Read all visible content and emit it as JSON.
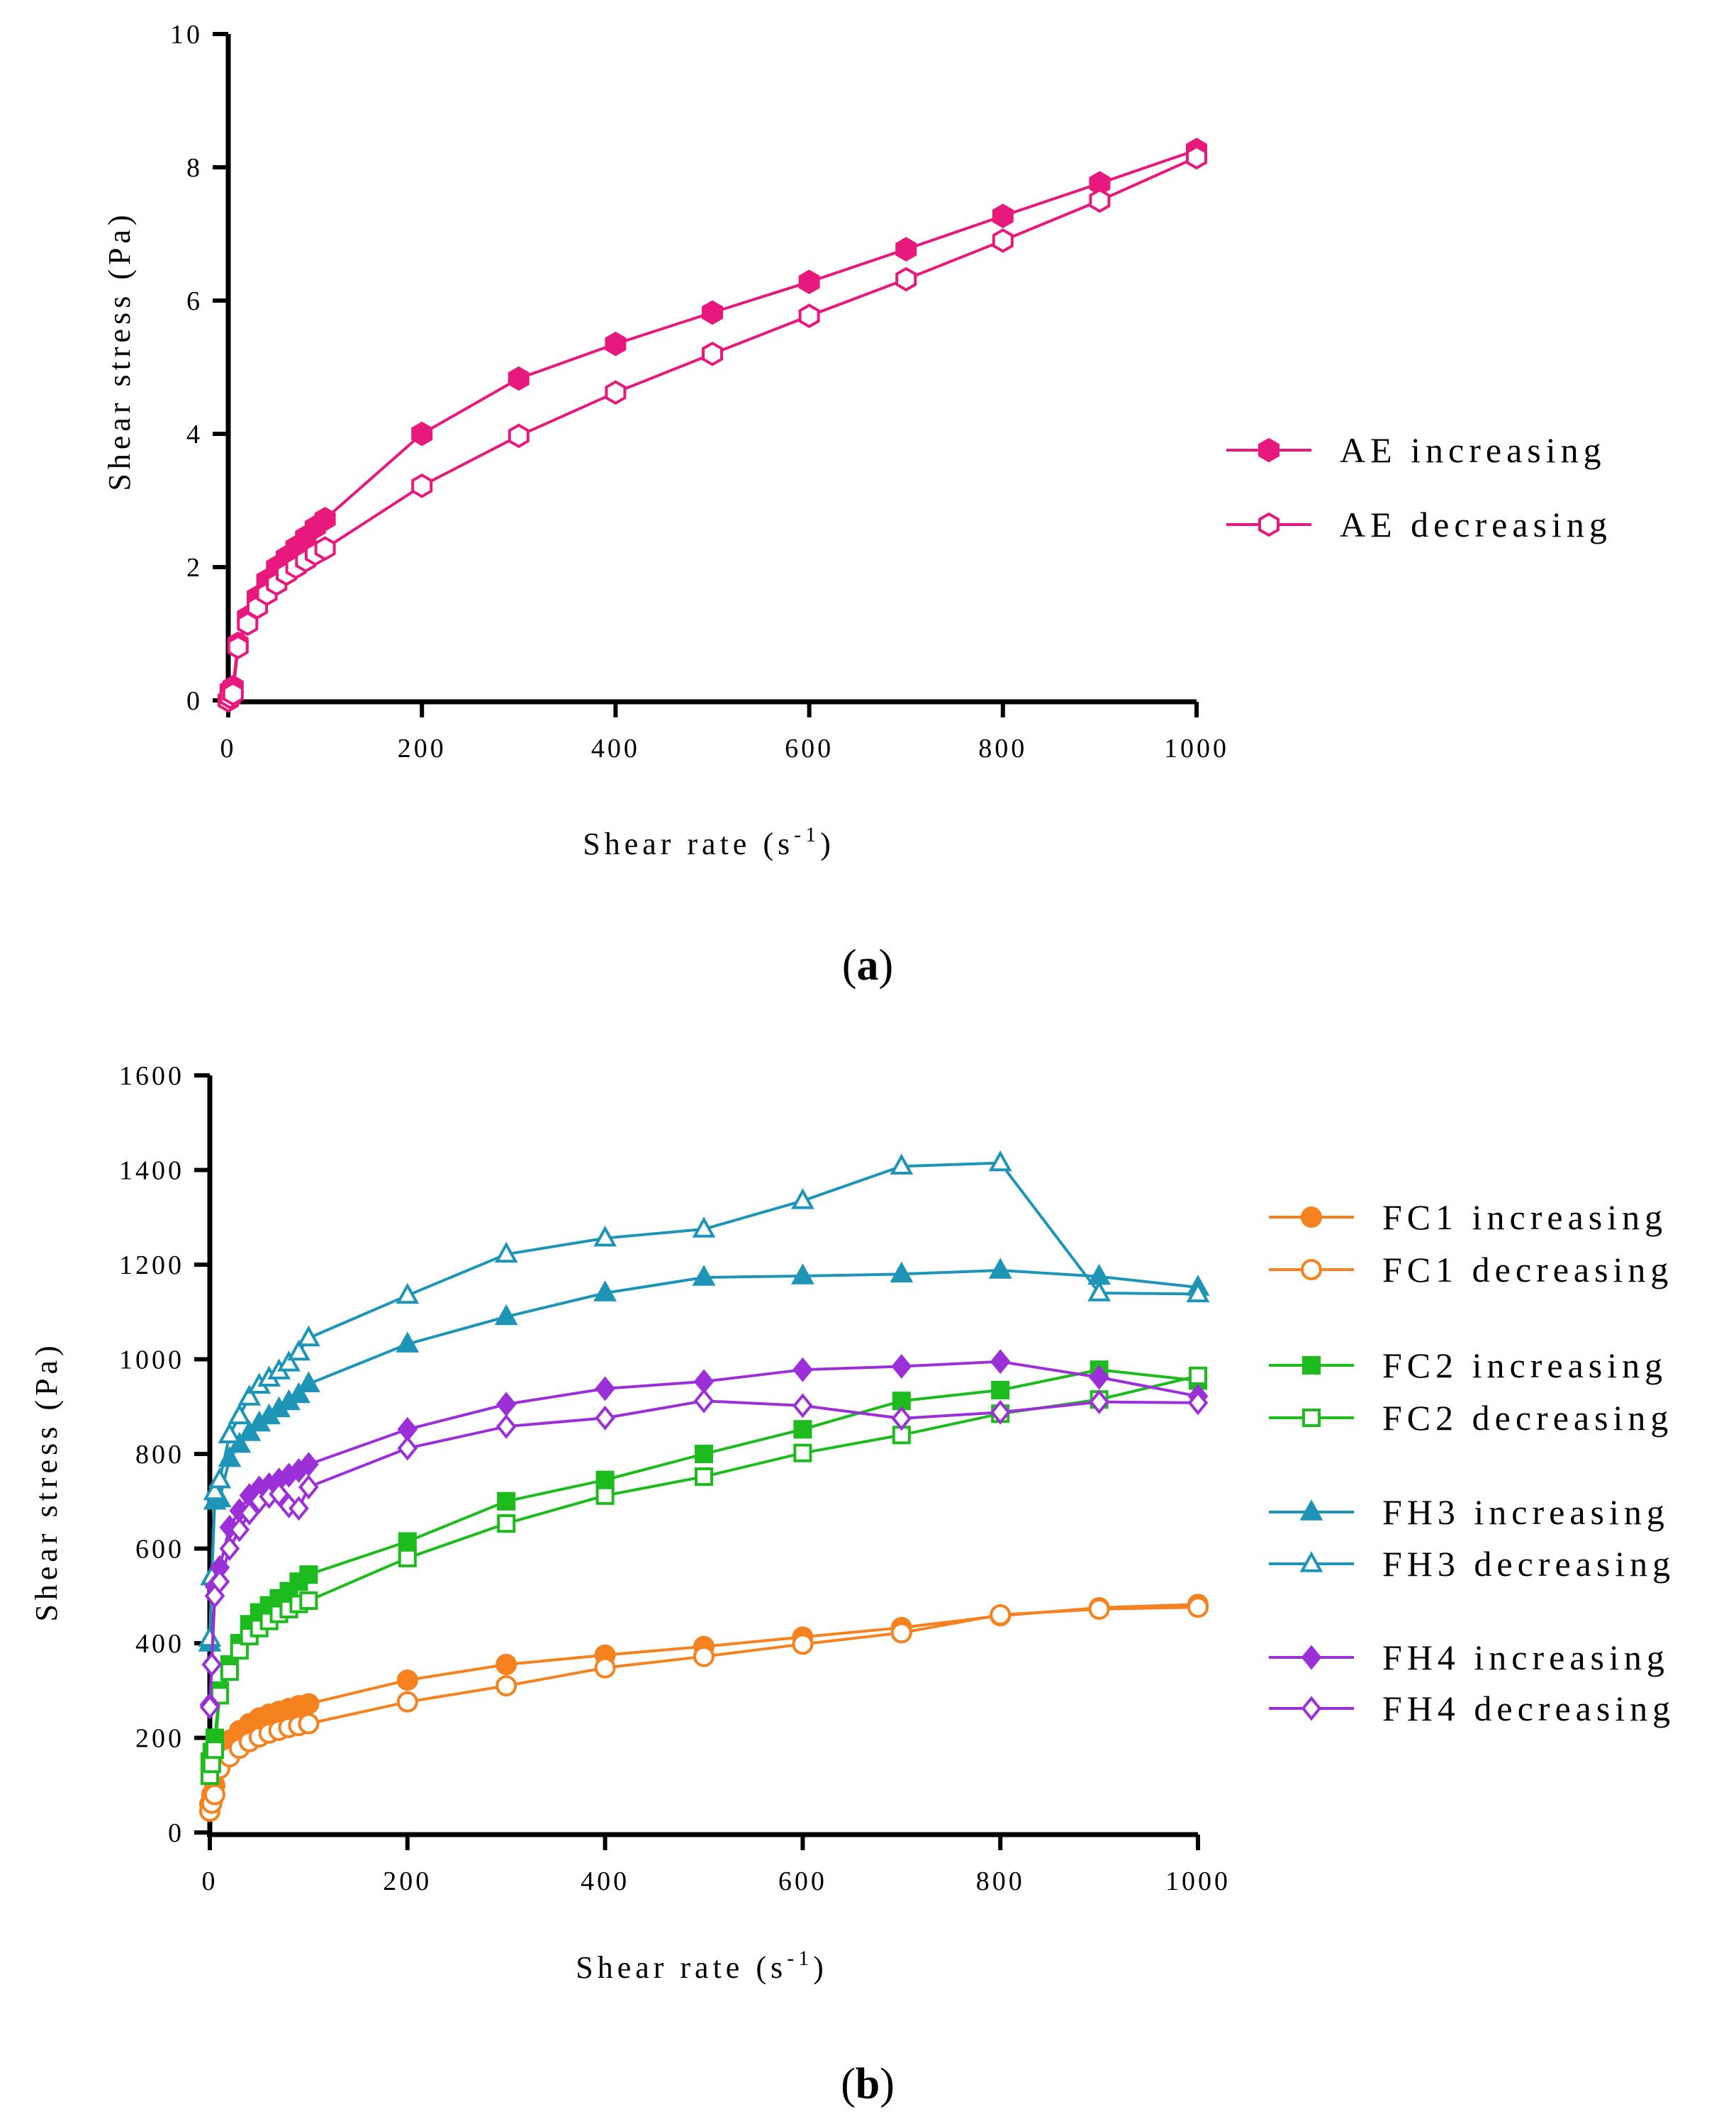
{
  "panels": [
    {
      "label_letter": "a",
      "open_paren": "(",
      "close_paren": ")"
    },
    {
      "label_letter": "b",
      "open_paren": "(",
      "close_paren": ")"
    }
  ],
  "chart_data": [
    {
      "type": "line",
      "xlabel": "Shear rate (s",
      "xlabel_sup": "-1",
      "xlabel_end": ")",
      "ylabel": "Shear stress (Pa)",
      "xlim": [
        0,
        1000
      ],
      "ylim": [
        0,
        10
      ],
      "xticks": [
        0,
        200,
        400,
        600,
        800,
        1000
      ],
      "yticks": [
        0,
        2,
        4,
        6,
        8,
        10
      ],
      "grid": false,
      "legend_position": "right",
      "series": [
        {
          "name": "AE increasing",
          "color": "#e8197d",
          "marker": "hexagon",
          "filled": true,
          "x": [
            0,
            2,
            5,
            10,
            20,
            30,
            40,
            50,
            60,
            70,
            80,
            90,
            100,
            200,
            300,
            400,
            500,
            600,
            700,
            800,
            900,
            1000
          ],
          "y": [
            0.0,
            0.15,
            0.2,
            0.85,
            1.25,
            1.55,
            1.8,
            2.0,
            2.15,
            2.3,
            2.45,
            2.6,
            2.72,
            4.0,
            4.83,
            5.35,
            5.82,
            6.28,
            6.77,
            7.27,
            7.76,
            8.26
          ]
        },
        {
          "name": "AE decreasing",
          "color": "#e8197d",
          "marker": "hexagon",
          "filled": false,
          "x": [
            0,
            2,
            5,
            10,
            20,
            30,
            40,
            50,
            60,
            70,
            80,
            90,
            100,
            200,
            300,
            400,
            500,
            600,
            700,
            800,
            900,
            1000
          ],
          "y": [
            0.0,
            0.05,
            0.1,
            0.8,
            1.15,
            1.4,
            1.6,
            1.75,
            1.9,
            2.0,
            2.1,
            2.2,
            2.28,
            3.22,
            3.97,
            4.62,
            5.2,
            5.77,
            6.32,
            6.9,
            7.5,
            8.15
          ]
        }
      ]
    },
    {
      "type": "line",
      "xlabel": "Shear rate (s",
      "xlabel_sup": "-1",
      "xlabel_end": ")",
      "ylabel": "Shear stress (Pa)",
      "xlim": [
        0,
        1000
      ],
      "ylim": [
        0,
        1600
      ],
      "xticks": [
        0,
        200,
        400,
        600,
        800,
        1000
      ],
      "yticks": [
        0,
        200,
        400,
        600,
        800,
        1000,
        1200,
        1400,
        1600
      ],
      "grid": false,
      "legend_position": "right",
      "series": [
        {
          "name": "FC1 increasing",
          "color": "#f5821f",
          "marker": "circle",
          "filled": true,
          "x": [
            0,
            2,
            5,
            10,
            20,
            30,
            40,
            50,
            60,
            70,
            80,
            90,
            100,
            200,
            300,
            400,
            500,
            600,
            700,
            800,
            900,
            1000
          ],
          "y": [
            60,
            80,
            100,
            165,
            195,
            215,
            230,
            242,
            250,
            256,
            262,
            268,
            272,
            322,
            355,
            375,
            393,
            413,
            433,
            458,
            475,
            482
          ]
        },
        {
          "name": "FC1 decreasing",
          "color": "#f5821f",
          "marker": "circle",
          "filled": false,
          "x": [
            0,
            2,
            5,
            10,
            20,
            30,
            40,
            50,
            60,
            70,
            80,
            90,
            100,
            200,
            300,
            400,
            500,
            600,
            700,
            800,
            900,
            1000
          ],
          "y": [
            45,
            62,
            80,
            135,
            160,
            178,
            192,
            202,
            210,
            216,
            222,
            226,
            230,
            276,
            310,
            348,
            372,
            398,
            422,
            460,
            472,
            476
          ]
        },
        {
          "name": "FC2 increasing",
          "color": "#1dbb1d",
          "marker": "square",
          "filled": true,
          "x": [
            0,
            2,
            5,
            10,
            20,
            30,
            40,
            50,
            60,
            70,
            80,
            90,
            100,
            200,
            300,
            400,
            500,
            600,
            700,
            800,
            900,
            1000
          ],
          "y": [
            150,
            170,
            200,
            300,
            355,
            400,
            440,
            465,
            480,
            495,
            510,
            530,
            545,
            615,
            700,
            745,
            800,
            852,
            912,
            935,
            978,
            955
          ]
        },
        {
          "name": "FC2 decreasing",
          "color": "#1dbb1d",
          "marker": "square",
          "filled": false,
          "x": [
            0,
            2,
            5,
            10,
            20,
            30,
            40,
            50,
            60,
            70,
            80,
            90,
            100,
            200,
            300,
            400,
            500,
            600,
            700,
            800,
            900,
            1000
          ],
          "y": [
            120,
            145,
            175,
            290,
            340,
            385,
            415,
            432,
            447,
            462,
            472,
            483,
            490,
            580,
            653,
            712,
            752,
            802,
            840,
            885,
            915,
            965
          ]
        },
        {
          "name": "FH3 increasing",
          "color": "#1e95b6",
          "marker": "triangle",
          "filled": true,
          "x": [
            0,
            2,
            5,
            10,
            20,
            30,
            40,
            50,
            60,
            70,
            80,
            90,
            100,
            200,
            300,
            400,
            500,
            600,
            700,
            800,
            900,
            1000
          ],
          "y": [
            400,
            540,
            700,
            705,
            790,
            820,
            845,
            865,
            880,
            895,
            910,
            925,
            948,
            1032,
            1090,
            1140,
            1173,
            1176,
            1180,
            1188,
            1175,
            1152
          ]
        },
        {
          "name": "FH3 decreasing",
          "color": "#1e95b6",
          "marker": "triangle",
          "filled": false,
          "x": [
            0,
            2,
            5,
            10,
            20,
            30,
            40,
            50,
            60,
            70,
            80,
            90,
            100,
            200,
            300,
            400,
            500,
            600,
            700,
            800,
            900,
            1000
          ],
          "y": [
            410,
            540,
            720,
            745,
            840,
            880,
            920,
            945,
            960,
            975,
            992,
            1015,
            1045,
            1135,
            1222,
            1256,
            1275,
            1335,
            1408,
            1415,
            1140,
            1138
          ]
        },
        {
          "name": "FH4 increasing",
          "color": "#9b30d9",
          "marker": "diamond",
          "filled": true,
          "x": [
            0,
            2,
            5,
            10,
            20,
            30,
            40,
            50,
            60,
            70,
            80,
            90,
            100,
            200,
            300,
            400,
            500,
            600,
            700,
            800,
            900,
            1000
          ],
          "y": [
            270,
            355,
            520,
            560,
            645,
            680,
            712,
            728,
            735,
            745,
            755,
            765,
            778,
            852,
            905,
            938,
            953,
            978,
            985,
            995,
            962,
            922
          ]
        },
        {
          "name": "FH4 decreasing",
          "color": "#9b30d9",
          "marker": "diamond",
          "filled": false,
          "x": [
            0,
            2,
            5,
            10,
            20,
            30,
            40,
            50,
            60,
            70,
            80,
            90,
            100,
            200,
            300,
            400,
            500,
            600,
            700,
            800,
            900,
            1000
          ],
          "y": [
            265,
            355,
            500,
            530,
            600,
            640,
            675,
            700,
            710,
            715,
            690,
            685,
            730,
            812,
            858,
            876,
            912,
            902,
            875,
            888,
            910,
            908
          ]
        }
      ]
    }
  ]
}
